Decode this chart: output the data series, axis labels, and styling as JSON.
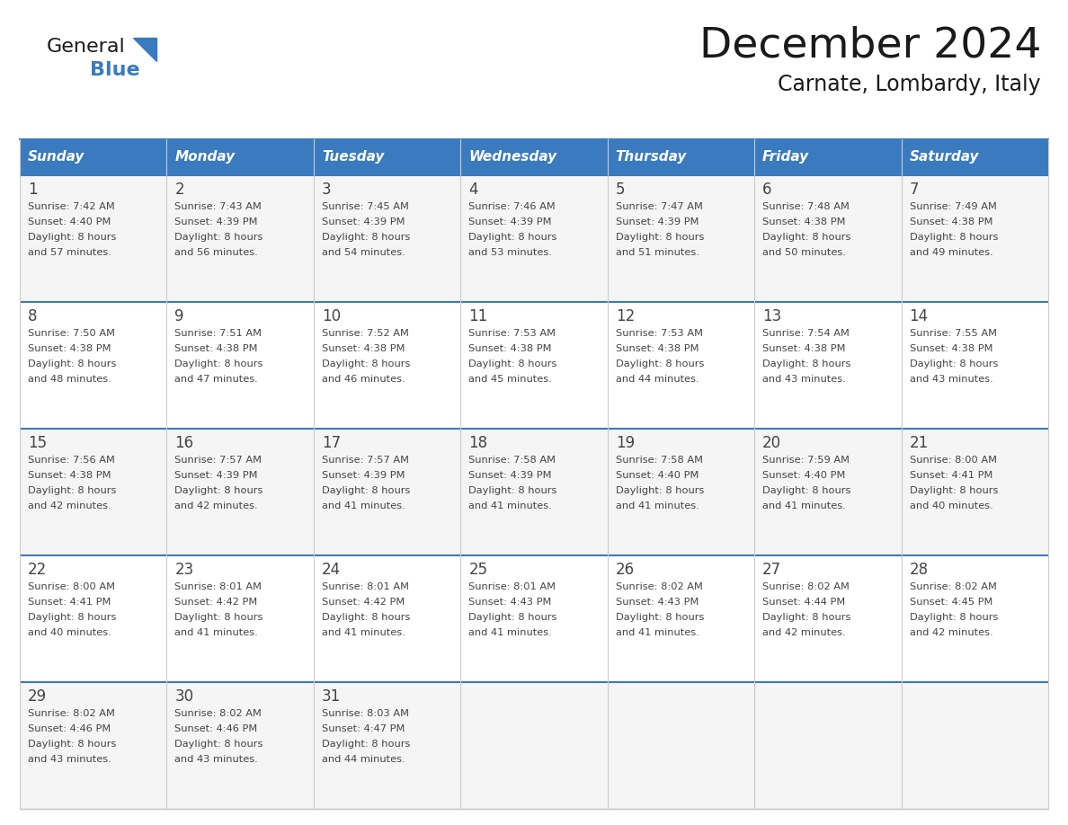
{
  "title": "December 2024",
  "subtitle": "Carnate, Lombardy, Italy",
  "header_color": "#3a7abf",
  "header_text_color": "#ffffff",
  "row_colors": [
    "#f5f5f5",
    "#ffffff",
    "#f5f5f5",
    "#ffffff",
    "#f5f5f5"
  ],
  "divider_color": "#3a7abf",
  "grid_color": "#cccccc",
  "day_headers": [
    "Sunday",
    "Monday",
    "Tuesday",
    "Wednesday",
    "Thursday",
    "Friday",
    "Saturday"
  ],
  "days": [
    {
      "day": 1,
      "col": 0,
      "row": 0,
      "sunrise": "7:42 AM",
      "sunset": "4:40 PM",
      "daylight_extra": "57 minutes."
    },
    {
      "day": 2,
      "col": 1,
      "row": 0,
      "sunrise": "7:43 AM",
      "sunset": "4:39 PM",
      "daylight_extra": "56 minutes."
    },
    {
      "day": 3,
      "col": 2,
      "row": 0,
      "sunrise": "7:45 AM",
      "sunset": "4:39 PM",
      "daylight_extra": "54 minutes."
    },
    {
      "day": 4,
      "col": 3,
      "row": 0,
      "sunrise": "7:46 AM",
      "sunset": "4:39 PM",
      "daylight_extra": "53 minutes."
    },
    {
      "day": 5,
      "col": 4,
      "row": 0,
      "sunrise": "7:47 AM",
      "sunset": "4:39 PM",
      "daylight_extra": "51 minutes."
    },
    {
      "day": 6,
      "col": 5,
      "row": 0,
      "sunrise": "7:48 AM",
      "sunset": "4:38 PM",
      "daylight_extra": "50 minutes."
    },
    {
      "day": 7,
      "col": 6,
      "row": 0,
      "sunrise": "7:49 AM",
      "sunset": "4:38 PM",
      "daylight_extra": "49 minutes."
    },
    {
      "day": 8,
      "col": 0,
      "row": 1,
      "sunrise": "7:50 AM",
      "sunset": "4:38 PM",
      "daylight_extra": "48 minutes."
    },
    {
      "day": 9,
      "col": 1,
      "row": 1,
      "sunrise": "7:51 AM",
      "sunset": "4:38 PM",
      "daylight_extra": "47 minutes."
    },
    {
      "day": 10,
      "col": 2,
      "row": 1,
      "sunrise": "7:52 AM",
      "sunset": "4:38 PM",
      "daylight_extra": "46 minutes."
    },
    {
      "day": 11,
      "col": 3,
      "row": 1,
      "sunrise": "7:53 AM",
      "sunset": "4:38 PM",
      "daylight_extra": "45 minutes."
    },
    {
      "day": 12,
      "col": 4,
      "row": 1,
      "sunrise": "7:53 AM",
      "sunset": "4:38 PM",
      "daylight_extra": "44 minutes."
    },
    {
      "day": 13,
      "col": 5,
      "row": 1,
      "sunrise": "7:54 AM",
      "sunset": "4:38 PM",
      "daylight_extra": "43 minutes."
    },
    {
      "day": 14,
      "col": 6,
      "row": 1,
      "sunrise": "7:55 AM",
      "sunset": "4:38 PM",
      "daylight_extra": "43 minutes."
    },
    {
      "day": 15,
      "col": 0,
      "row": 2,
      "sunrise": "7:56 AM",
      "sunset": "4:38 PM",
      "daylight_extra": "42 minutes."
    },
    {
      "day": 16,
      "col": 1,
      "row": 2,
      "sunrise": "7:57 AM",
      "sunset": "4:39 PM",
      "daylight_extra": "42 minutes."
    },
    {
      "day": 17,
      "col": 2,
      "row": 2,
      "sunrise": "7:57 AM",
      "sunset": "4:39 PM",
      "daylight_extra": "41 minutes."
    },
    {
      "day": 18,
      "col": 3,
      "row": 2,
      "sunrise": "7:58 AM",
      "sunset": "4:39 PM",
      "daylight_extra": "41 minutes."
    },
    {
      "day": 19,
      "col": 4,
      "row": 2,
      "sunrise": "7:58 AM",
      "sunset": "4:40 PM",
      "daylight_extra": "41 minutes."
    },
    {
      "day": 20,
      "col": 5,
      "row": 2,
      "sunrise": "7:59 AM",
      "sunset": "4:40 PM",
      "daylight_extra": "41 minutes."
    },
    {
      "day": 21,
      "col": 6,
      "row": 2,
      "sunrise": "8:00 AM",
      "sunset": "4:41 PM",
      "daylight_extra": "40 minutes."
    },
    {
      "day": 22,
      "col": 0,
      "row": 3,
      "sunrise": "8:00 AM",
      "sunset": "4:41 PM",
      "daylight_extra": "40 minutes."
    },
    {
      "day": 23,
      "col": 1,
      "row": 3,
      "sunrise": "8:01 AM",
      "sunset": "4:42 PM",
      "daylight_extra": "41 minutes."
    },
    {
      "day": 24,
      "col": 2,
      "row": 3,
      "sunrise": "8:01 AM",
      "sunset": "4:42 PM",
      "daylight_extra": "41 minutes."
    },
    {
      "day": 25,
      "col": 3,
      "row": 3,
      "sunrise": "8:01 AM",
      "sunset": "4:43 PM",
      "daylight_extra": "41 minutes."
    },
    {
      "day": 26,
      "col": 4,
      "row": 3,
      "sunrise": "8:02 AM",
      "sunset": "4:43 PM",
      "daylight_extra": "41 minutes."
    },
    {
      "day": 27,
      "col": 5,
      "row": 3,
      "sunrise": "8:02 AM",
      "sunset": "4:44 PM",
      "daylight_extra": "42 minutes."
    },
    {
      "day": 28,
      "col": 6,
      "row": 3,
      "sunrise": "8:02 AM",
      "sunset": "4:45 PM",
      "daylight_extra": "42 minutes."
    },
    {
      "day": 29,
      "col": 0,
      "row": 4,
      "sunrise": "8:02 AM",
      "sunset": "4:46 PM",
      "daylight_extra": "43 minutes."
    },
    {
      "day": 30,
      "col": 1,
      "row": 4,
      "sunrise": "8:02 AM",
      "sunset": "4:46 PM",
      "daylight_extra": "43 minutes."
    },
    {
      "day": 31,
      "col": 2,
      "row": 4,
      "sunrise": "8:03 AM",
      "sunset": "4:47 PM",
      "daylight_extra": "44 minutes."
    }
  ]
}
